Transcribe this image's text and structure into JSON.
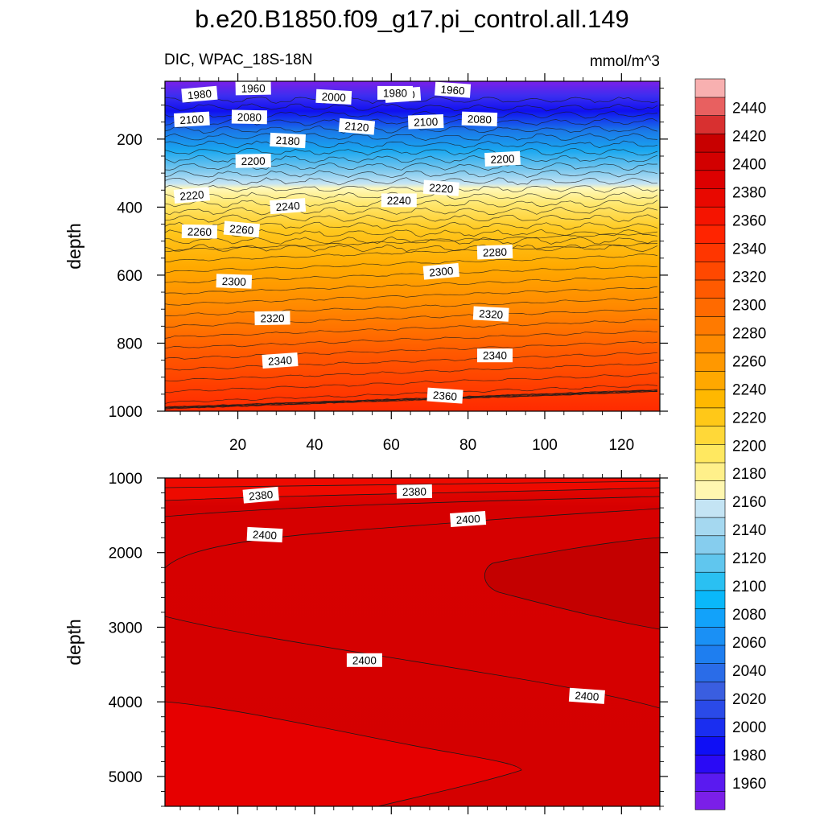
{
  "figure": {
    "title": "b.e20.B1850.f09_g17.pi_control.all.149",
    "left_subtitle": "DIC, WPAC_18S-18N",
    "right_subtitle": "mmol/m^3"
  },
  "colors": {
    "purple": "#7b1fe8",
    "deep_blue": "#1010f0",
    "light_blue": "#aad8f0",
    "pale_yellow": "#fff8b8",
    "orange": "#ff9a00",
    "red": "#ff2a00",
    "dark_red": "#cc0000"
  },
  "chart_data": [
    {
      "type": "heatmap",
      "panel": "upper",
      "ylabel": "depth",
      "xlim": [
        1,
        130
      ],
      "ylim": [
        1000,
        30
      ],
      "x_ticks": [
        20,
        40,
        60,
        80,
        100,
        120
      ],
      "y_ticks": [
        200,
        400,
        600,
        800,
        1000
      ],
      "contour_levels": [
        1960,
        1980,
        2000,
        2020,
        2040,
        2060,
        2080,
        2100,
        2120,
        2140,
        2160,
        2180,
        2200,
        2220,
        2240,
        2260,
        2280,
        2300,
        2320,
        2340,
        2360,
        2380,
        2400
      ],
      "contour_labels": [
        {
          "x": 10,
          "y": 68,
          "value": "1980"
        },
        {
          "x": 24,
          "y": 50,
          "value": "1960"
        },
        {
          "x": 45,
          "y": 76,
          "value": "2000"
        },
        {
          "x": 63,
          "y": 70,
          "value": "2000"
        },
        {
          "x": 61,
          "y": 64,
          "value": "1980"
        },
        {
          "x": 76,
          "y": 55,
          "value": "1960"
        },
        {
          "x": 8,
          "y": 142,
          "value": "2100"
        },
        {
          "x": 23,
          "y": 135,
          "value": "2080"
        },
        {
          "x": 51,
          "y": 163,
          "value": "2120"
        },
        {
          "x": 69,
          "y": 149,
          "value": "2100"
        },
        {
          "x": 83,
          "y": 141,
          "value": "2080"
        },
        {
          "x": 8,
          "y": 365,
          "value": "2220"
        },
        {
          "x": 24,
          "y": 264,
          "value": "2200"
        },
        {
          "x": 33,
          "y": 204,
          "value": "2180"
        },
        {
          "x": 33,
          "y": 397,
          "value": "2240"
        },
        {
          "x": 62,
          "y": 380,
          "value": "2240"
        },
        {
          "x": 73,
          "y": 344,
          "value": "2220"
        },
        {
          "x": 89,
          "y": 258,
          "value": "2200"
        },
        {
          "x": 10,
          "y": 472,
          "value": "2260"
        },
        {
          "x": 21,
          "y": 465,
          "value": "2260"
        },
        {
          "x": 87,
          "y": 532,
          "value": "2280"
        },
        {
          "x": 19,
          "y": 618,
          "value": "2300"
        },
        {
          "x": 73,
          "y": 589,
          "value": "2300"
        },
        {
          "x": 29,
          "y": 726,
          "value": "2320"
        },
        {
          "x": 86,
          "y": 714,
          "value": "2320"
        },
        {
          "x": 31,
          "y": 851,
          "value": "2340"
        },
        {
          "x": 87,
          "y": 836,
          "value": "2340"
        },
        {
          "x": 74,
          "y": 954,
          "value": "2360"
        }
      ]
    },
    {
      "type": "heatmap",
      "panel": "lower",
      "ylabel": "depth",
      "xlim": [
        1,
        130
      ],
      "ylim": [
        5400,
        1000
      ],
      "y_ticks": [
        1000,
        2000,
        3000,
        4000,
        5000
      ],
      "contour_labels": [
        {
          "x": 26,
          "y": 1230,
          "value": "2380"
        },
        {
          "x": 66,
          "y": 1180,
          "value": "2380"
        },
        {
          "x": 27,
          "y": 1760,
          "value": "2400"
        },
        {
          "x": 80,
          "y": 1550,
          "value": "2400"
        },
        {
          "x": 53,
          "y": 3440,
          "value": "2400"
        },
        {
          "x": 111,
          "y": 3920,
          "value": "2400"
        }
      ]
    }
  ],
  "colorbar": {
    "labels": [
      "2440",
      "2420",
      "2400",
      "2380",
      "2360",
      "2340",
      "2320",
      "2300",
      "2280",
      "2260",
      "2240",
      "2220",
      "2200",
      "2180",
      "2160",
      "2140",
      "2120",
      "2100",
      "2080",
      "2060",
      "2040",
      "2020",
      "2000",
      "1980",
      "1960"
    ]
  }
}
